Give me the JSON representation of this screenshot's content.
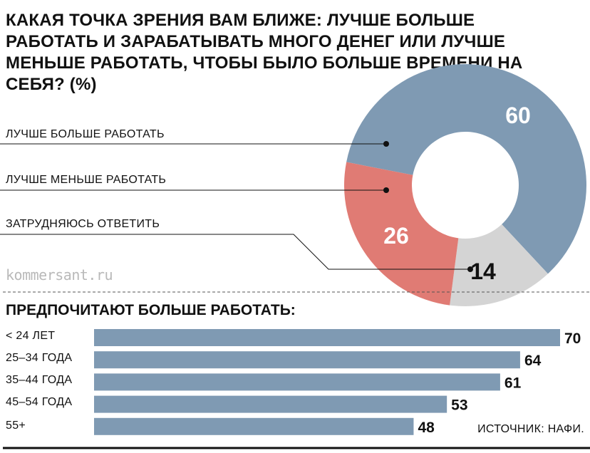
{
  "title": "КАКАЯ ТОЧКА ЗРЕНИЯ ВАМ БЛИЖЕ: ЛУЧШЕ БОЛЬШЕ РАБОТАТЬ И ЗАРАБАТЫВАТЬ МНОГО ДЕНЕГ ИЛИ ЛУЧШЕ МЕНЬШЕ РАБОТАТЬ, ЧТОБЫ БЫЛО БОЛЬШЕ ВРЕМЕНИ НА СЕБЯ? (%)",
  "brand": "kommersant.ru",
  "source": "ИСТОЧНИК: НАФИ.",
  "chart_data": [
    {
      "type": "pie",
      "donut": true,
      "title": "КАКАЯ ТОЧКА ЗРЕНИЯ ВАМ БЛИЖЕ: ЛУЧШЕ БОЛЬШЕ РАБОТАТЬ И ЗАРАБАТЫВАТЬ МНОГО ДЕНЕГ ИЛИ ЛУЧШЕ МЕНЬШЕ РАБОТАТЬ, ЧТОБЫ БЫЛО БОЛЬШЕ ВРЕМЕНИ НА СЕБЯ? (%)",
      "slices": [
        {
          "label": "ЛУЧШЕ БОЛЬШЕ РАБОТАТЬ",
          "value": 60,
          "color": "#7f9ab3"
        },
        {
          "label": "ЛУЧШЕ МЕНЬШЕ РАБОТАТЬ",
          "value": 26,
          "color": "#e07b74"
        },
        {
          "label": "ЗАТРУДНЯЮСЬ ОТВЕТИТЬ",
          "value": 14,
          "color": "#d4d4d4"
        }
      ]
    },
    {
      "type": "bar",
      "orientation": "horizontal",
      "title": "ПРЕДПОЧИТАЮТ БОЛЬШЕ РАБОТАТЬ:",
      "categories": [
        "< 24 ЛЕТ",
        "25–34 ГОДА",
        "35–44 ГОДА",
        "45–54 ГОДА",
        "55+"
      ],
      "values": [
        70,
        64,
        61,
        53,
        48
      ],
      "color": "#7f9ab3",
      "xlim": [
        0,
        70
      ]
    }
  ]
}
